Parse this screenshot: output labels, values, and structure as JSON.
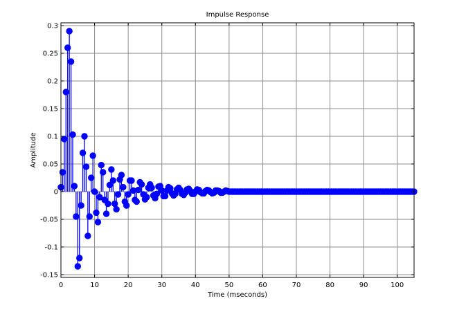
{
  "chart_data": {
    "type": "stem",
    "title": "Impulse Response",
    "xlabel": "Time (mseconds)",
    "ylabel": "Amplitude",
    "xlim": [
      0,
      105
    ],
    "ylim": [
      -0.155,
      0.305
    ],
    "x_ticks": [
      "0",
      "10",
      "20",
      "30",
      "40",
      "50",
      "60",
      "70",
      "80",
      "90",
      "100"
    ],
    "x_tick_values": [
      0,
      10,
      20,
      30,
      40,
      50,
      60,
      70,
      80,
      90,
      100
    ],
    "y_ticks": [
      "-0.15",
      "-0.1",
      "-0.05",
      "0",
      "0.05",
      "0.1",
      "0.15",
      "0.2",
      "0.25",
      "0.3"
    ],
    "y_tick_values": [
      -0.15,
      -0.1,
      -0.05,
      0,
      0.05,
      0.1,
      0.15,
      0.2,
      0.25,
      0.3
    ],
    "grid": true,
    "color": "#0000ff",
    "time_step": 0.5,
    "series": [
      {
        "values": [
          0.008,
          0.035,
          0.095,
          0.18,
          0.26,
          0.29,
          0.235,
          0.103,
          0.01,
          -0.045,
          -0.135,
          -0.12,
          -0.025,
          0.07,
          0.1,
          0.045,
          -0.08,
          -0.045,
          0.025,
          0.065,
          0.0,
          -0.038,
          -0.055,
          -0.01,
          0.048,
          0.035,
          -0.015,
          -0.04,
          -0.022,
          0.012,
          0.04,
          0.02,
          -0.022,
          -0.032,
          -0.005,
          0.022,
          0.03,
          0.008,
          -0.018,
          -0.025,
          -0.005,
          0.02,
          0.02,
          0.002,
          -0.015,
          -0.018,
          0.003,
          0.017,
          0.013,
          -0.005,
          -0.014,
          -0.01,
          0.007,
          0.013,
          0.007,
          -0.007,
          -0.012,
          -0.004,
          0.009,
          0.01,
          0.002,
          -0.008,
          -0.008,
          0.002,
          0.008,
          0.006,
          -0.003,
          -0.007,
          -0.004,
          0.004,
          0.007,
          0.003,
          -0.004,
          -0.006,
          -0.002,
          0.004,
          0.005,
          0.001,
          -0.004,
          -0.004,
          0.0,
          0.004,
          0.003,
          -0.001,
          -0.003,
          -0.003,
          0.001,
          0.003,
          0.002,
          -0.001,
          -0.003,
          -0.002,
          0.002,
          0.002,
          0.001,
          -0.002,
          -0.002,
          0.0,
          0.002,
          0.001
        ]
      }
    ]
  }
}
